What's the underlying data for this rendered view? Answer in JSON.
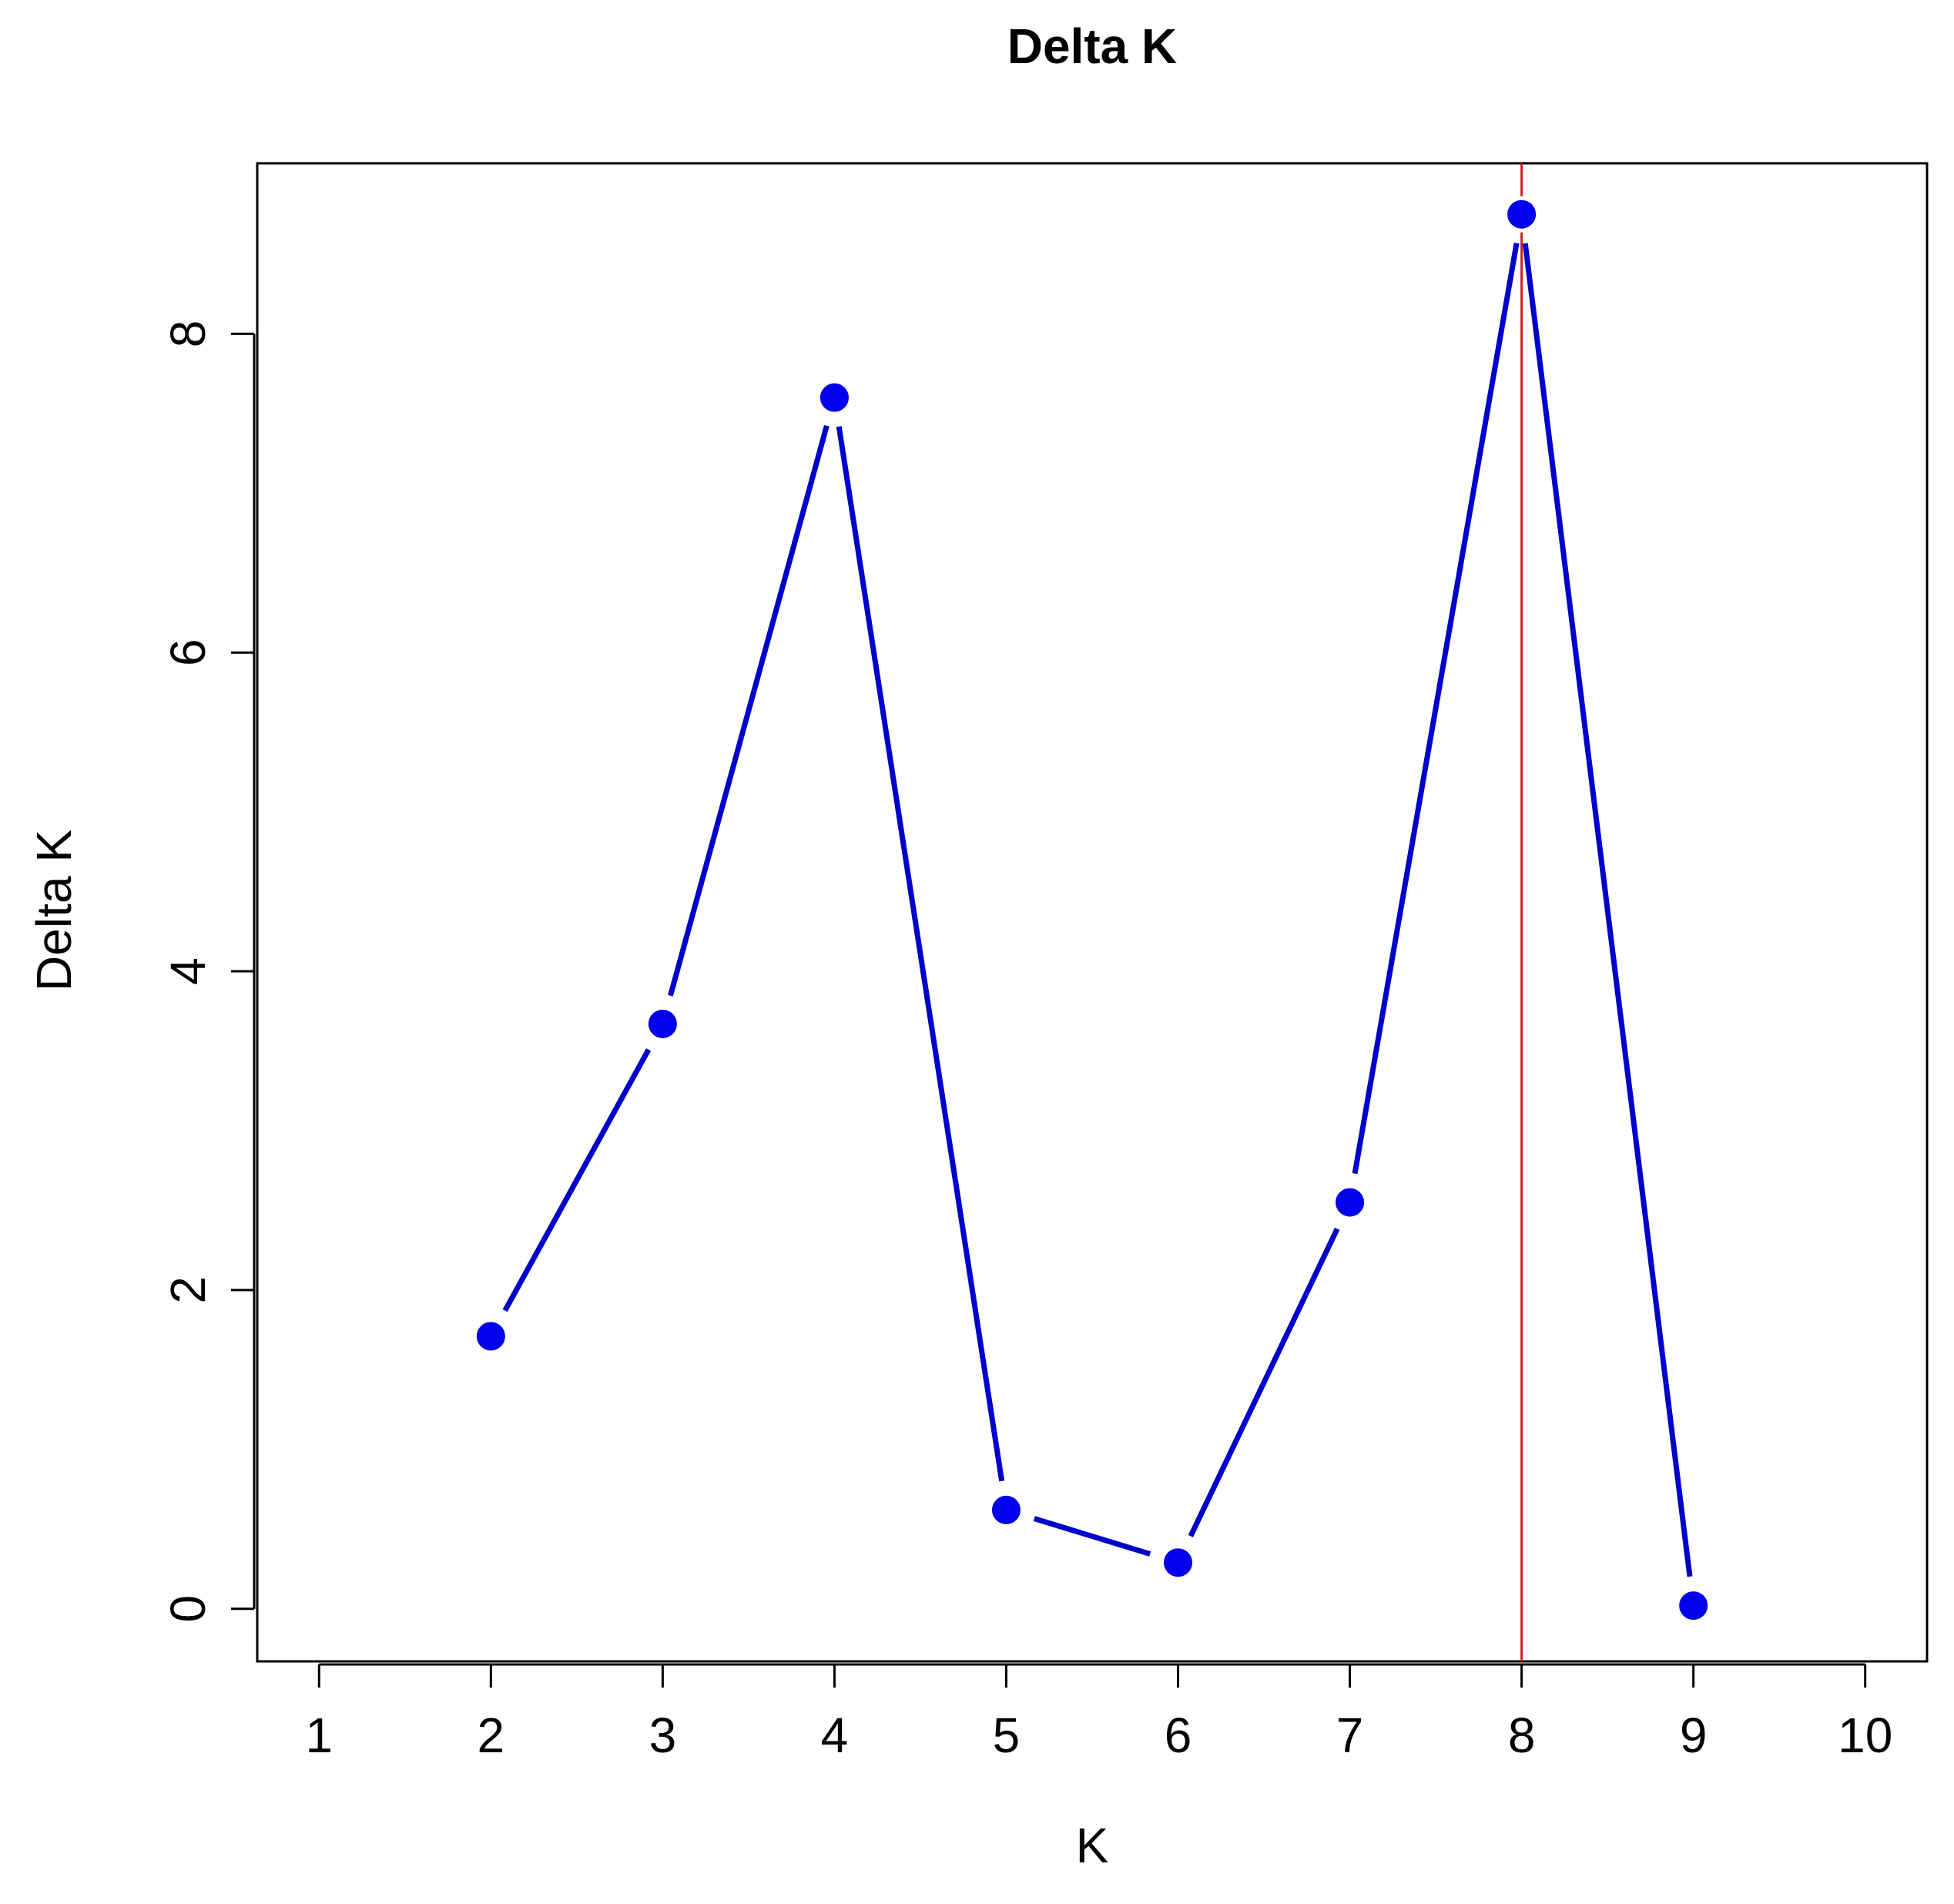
{
  "chart_data": {
    "type": "line",
    "title": "Delta K",
    "xlabel": "K",
    "ylabel": "Delta K",
    "x_ticks": [
      1,
      2,
      3,
      4,
      5,
      6,
      7,
      8,
      9,
      10
    ],
    "y_ticks": [
      0,
      2,
      4,
      6,
      8
    ],
    "xlim": [
      0.64,
      10.36
    ],
    "ylim": [
      -0.33,
      9.07
    ],
    "series": [
      {
        "x": [
          2,
          3,
          4,
          5,
          6,
          7,
          8,
          9
        ],
        "y": [
          1.71,
          3.67,
          7.6,
          0.62,
          0.29,
          2.55,
          8.75,
          0.02
        ],
        "color": "#0000cc",
        "marker_color": "#0000ee"
      }
    ],
    "reference_line": {
      "orientation": "vertical",
      "x": 8,
      "color": "#cc2222"
    },
    "grid": false,
    "legend": "none"
  }
}
